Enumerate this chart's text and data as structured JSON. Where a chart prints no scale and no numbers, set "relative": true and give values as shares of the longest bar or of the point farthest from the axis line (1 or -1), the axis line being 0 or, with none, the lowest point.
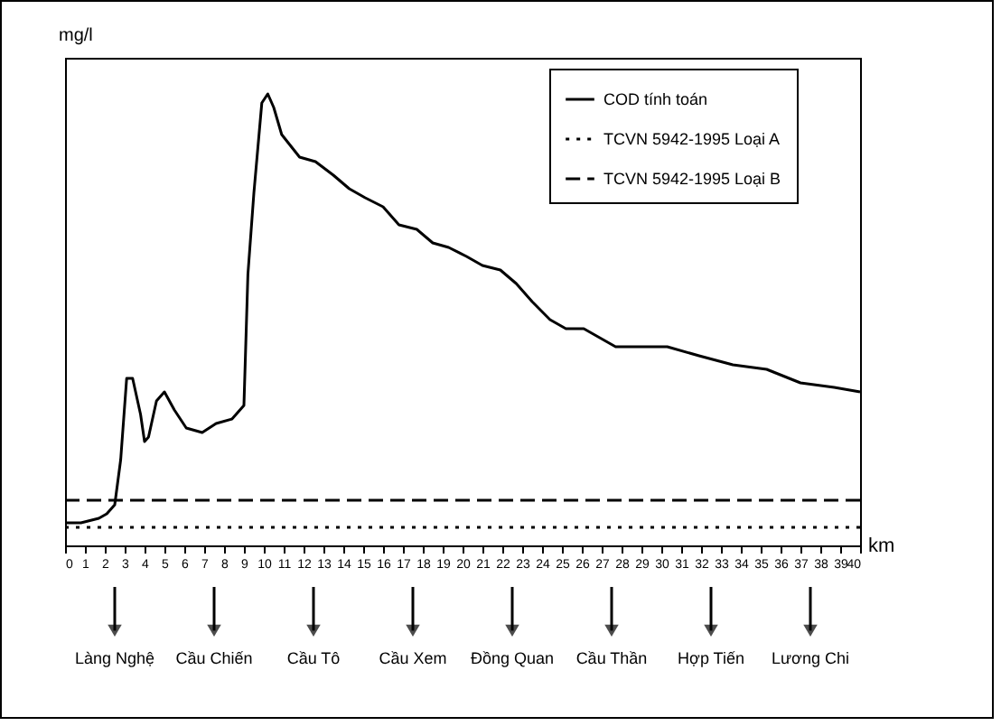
{
  "chart_data": {
    "type": "line",
    "relative": true,
    "xlabel": "km",
    "ylabel": "mg/l",
    "xlim": [
      0,
      40
    ],
    "xticks": [
      0,
      1,
      2,
      3,
      4,
      5,
      6,
      7,
      8,
      9,
      10,
      11,
      12,
      13,
      14,
      15,
      16,
      17,
      18,
      19,
      20,
      21,
      22,
      23,
      24,
      25,
      26,
      27,
      28,
      29,
      30,
      31,
      32,
      33,
      34,
      35,
      36,
      37,
      38,
      39,
      40
    ],
    "series": [
      {
        "name": "COD tính toán",
        "color": "#000000",
        "x": [
          0,
          0.8,
          1.7,
          2.1,
          2.5,
          2.8,
          3.1,
          3.4,
          3.8,
          4.0,
          4.2,
          4.6,
          5.0,
          5.5,
          6.1,
          6.9,
          7.6,
          8.4,
          9.0,
          9.2,
          9.5,
          9.9,
          10.2,
          10.5,
          10.9,
          11.8,
          12.6,
          13.5,
          14.3,
          15.1,
          16.0,
          16.8,
          17.7,
          18.5,
          19.3,
          20.2,
          21.0,
          21.9,
          22.7,
          23.5,
          24.4,
          25.2,
          26.1,
          26.9,
          27.7,
          28.6,
          30.3,
          31.9,
          33.6,
          35.3,
          37.0,
          38.7,
          40
        ],
        "values": [
          0.05,
          0.05,
          0.06,
          0.07,
          0.09,
          0.19,
          0.37,
          0.37,
          0.29,
          0.23,
          0.24,
          0.32,
          0.34,
          0.3,
          0.26,
          0.25,
          0.27,
          0.28,
          0.31,
          0.6,
          0.78,
          0.98,
          1,
          0.97,
          0.91,
          0.86,
          0.85,
          0.82,
          0.79,
          0.77,
          0.75,
          0.71,
          0.7,
          0.67,
          0.66,
          0.64,
          0.62,
          0.61,
          0.58,
          0.54,
          0.5,
          0.48,
          0.48,
          0.46,
          0.44,
          0.44,
          0.44,
          0.42,
          0.4,
          0.39,
          0.36,
          0.35,
          0.34
        ]
      }
    ],
    "ref_lines": [
      {
        "axis": "y",
        "value": 0.04,
        "label": "TCVN 5942-1995 Loại A",
        "color": "#000000",
        "line_style": "dotted"
      },
      {
        "axis": "y",
        "value": 0.1,
        "label": "TCVN 5942-1995 Loại B",
        "color": "#000000",
        "line_style": "dashed"
      }
    ],
    "annotations": [
      "Làng Nghệ",
      "Cầu Chiến",
      "Cầu Tô",
      "Cầu Xem",
      "Đồng Quan",
      "Cầu Thần",
      "Hợp Tiến",
      "Lương Chi"
    ],
    "legend": "top right",
    "line_style": "solid",
    "marker": "none",
    "grid": false
  }
}
